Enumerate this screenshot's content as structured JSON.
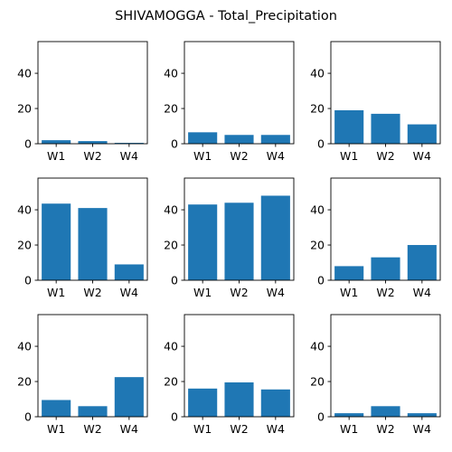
{
  "figure_title": "SHIVAMOGGA - Total_Precipitation",
  "chart_data": [
    {
      "type": "bar",
      "categories": [
        "W1",
        "W2",
        "W4"
      ],
      "values": [
        2.0,
        1.5,
        0.5
      ],
      "ylim": [
        0,
        58
      ],
      "yticks": [
        0,
        20,
        40
      ],
      "color": "#1f77b4"
    },
    {
      "type": "bar",
      "categories": [
        "W1",
        "W2",
        "W4"
      ],
      "values": [
        6.5,
        5.0,
        5.0
      ],
      "ylim": [
        0,
        58
      ],
      "yticks": [
        0,
        20,
        40
      ],
      "color": "#1f77b4"
    },
    {
      "type": "bar",
      "categories": [
        "W1",
        "W2",
        "W4"
      ],
      "values": [
        19.0,
        17.0,
        11.0
      ],
      "ylim": [
        0,
        58
      ],
      "yticks": [
        0,
        20,
        40
      ],
      "color": "#1f77b4"
    },
    {
      "type": "bar",
      "categories": [
        "W1",
        "W2",
        "W4"
      ],
      "values": [
        43.5,
        41.0,
        9.0
      ],
      "ylim": [
        0,
        58
      ],
      "yticks": [
        0,
        20,
        40
      ],
      "color": "#1f77b4"
    },
    {
      "type": "bar",
      "categories": [
        "W1",
        "W2",
        "W4"
      ],
      "values": [
        43.0,
        44.0,
        48.0
      ],
      "ylim": [
        0,
        58
      ],
      "yticks": [
        0,
        20,
        40
      ],
      "color": "#1f77b4"
    },
    {
      "type": "bar",
      "categories": [
        "W1",
        "W2",
        "W4"
      ],
      "values": [
        8.0,
        13.0,
        20.0
      ],
      "ylim": [
        0,
        58
      ],
      "yticks": [
        0,
        20,
        40
      ],
      "color": "#1f77b4"
    },
    {
      "type": "bar",
      "categories": [
        "W1",
        "W2",
        "W4"
      ],
      "values": [
        9.5,
        6.0,
        22.5
      ],
      "ylim": [
        0,
        58
      ],
      "yticks": [
        0,
        20,
        40
      ],
      "color": "#1f77b4"
    },
    {
      "type": "bar",
      "categories": [
        "W1",
        "W2",
        "W4"
      ],
      "values": [
        16.0,
        19.5,
        15.5
      ],
      "ylim": [
        0,
        58
      ],
      "yticks": [
        0,
        20,
        40
      ],
      "color": "#1f77b4"
    },
    {
      "type": "bar",
      "categories": [
        "W1",
        "W2",
        "W4"
      ],
      "values": [
        2.0,
        6.0,
        2.0
      ],
      "ylim": [
        0,
        58
      ],
      "yticks": [
        0,
        20,
        40
      ],
      "color": "#1f77b4"
    }
  ]
}
